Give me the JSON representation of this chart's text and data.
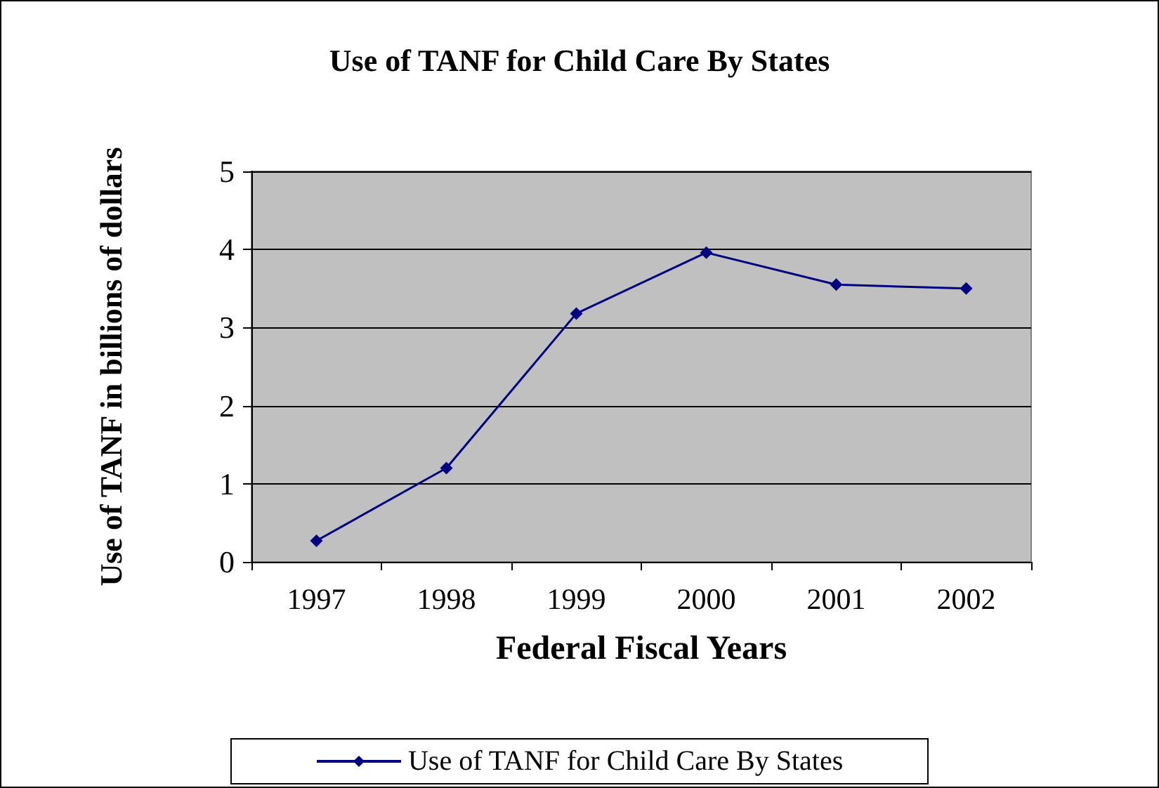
{
  "chart_data": {
    "type": "line",
    "title": "Use of TANF for Child Care By States",
    "xlabel": "Federal Fiscal Years",
    "ylabel": "Use of TANF in billions of dollars",
    "categories": [
      "1997",
      "1998",
      "1999",
      "2000",
      "2001",
      "2002"
    ],
    "series": [
      {
        "name": "Use of TANF for Child Care By States",
        "color": "#000080",
        "values": [
          0.27,
          1.2,
          3.18,
          3.96,
          3.55,
          3.5
        ]
      }
    ],
    "ylim": [
      0,
      5
    ],
    "yticks": [
      0,
      1,
      2,
      3,
      4,
      5
    ],
    "grid": "y",
    "legend": "bottom",
    "marker": "diamond",
    "line_style": "solid"
  }
}
